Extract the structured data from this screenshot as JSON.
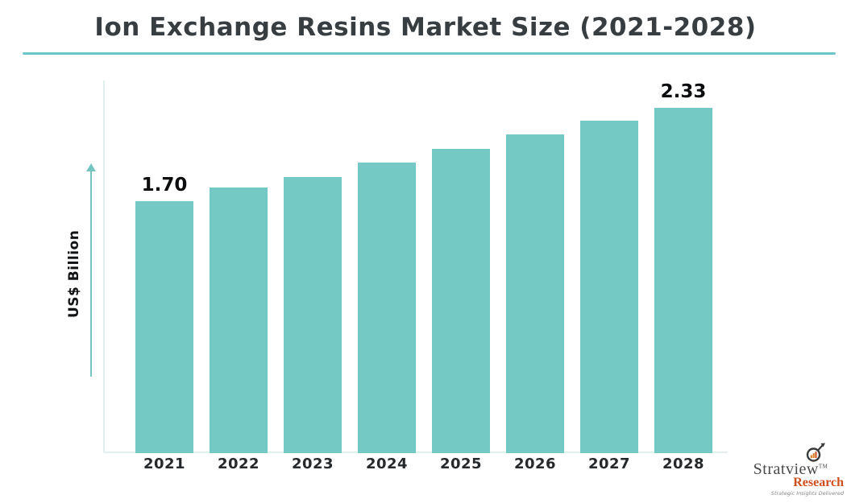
{
  "title": "Ion Exchange Resins Market Size (2021-2028)",
  "colors": {
    "bar": "#75c9c5",
    "title_text": "#383d42",
    "underline": "#6cc5c7",
    "axis": "#e0eeee",
    "arrow": "#74c5c1",
    "value_label": "#0c0d0e",
    "logo_brand": "#4a4a4a",
    "logo_research": "#d04f1e"
  },
  "chart_data": {
    "type": "bar",
    "title": "Ion Exchange Resins Market Size (2021-2028)",
    "categories": [
      "2021",
      "2022",
      "2023",
      "2024",
      "2025",
      "2026",
      "2027",
      "2028"
    ],
    "values": [
      1.7,
      1.79,
      1.86,
      1.96,
      2.05,
      2.15,
      2.24,
      2.33
    ],
    "bar_labels": [
      "1.70",
      "",
      "",
      "",
      "",
      "",
      "",
      "2.33"
    ],
    "xlabel": "",
    "ylabel": "US$ Billion",
    "ylim": [
      0,
      2.5
    ],
    "grid": false,
    "legend": false,
    "bar_color": "#75c9c5"
  },
  "logo": {
    "brand": "Stratview",
    "tm": "TM",
    "sub_brand": "Research",
    "tagline": "Strategic Insights Delivered"
  }
}
